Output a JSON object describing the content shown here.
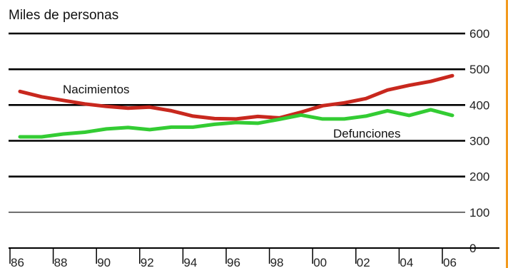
{
  "chart_data": {
    "type": "line",
    "title": "",
    "ylabel": "Miles de personas",
    "xlabel": "",
    "x": [
      1986,
      1987,
      1988,
      1989,
      1990,
      1991,
      1992,
      1993,
      1994,
      1995,
      1996,
      1997,
      1998,
      1999,
      2000,
      2001,
      2002,
      2003,
      2004,
      2005,
      2006
    ],
    "x_ticks": [
      1986,
      1988,
      1990,
      1992,
      1994,
      1996,
      1998,
      2000,
      2002,
      2004,
      2006
    ],
    "x_tick_labels": [
      "86",
      "88",
      "90",
      "92",
      "94",
      "96",
      "98",
      "00",
      "02",
      "04",
      "06"
    ],
    "ylim": [
      0,
      600
    ],
    "y_ticks": [
      0,
      100,
      200,
      300,
      400,
      500,
      600
    ],
    "y_tick_labels": [
      "0",
      "100",
      "200",
      "300",
      "400",
      "500",
      "600"
    ],
    "grid": true,
    "series": [
      {
        "name": "Nacimientos",
        "color": "#c8281e",
        "values": [
          438,
          423,
          413,
          403,
          396,
          391,
          394,
          384,
          369,
          362,
          361,
          368,
          364,
          380,
          398,
          406,
          418,
          442,
          455,
          466,
          482
        ]
      },
      {
        "name": "Defunciones",
        "color": "#33cc33",
        "values": [
          311,
          311,
          319,
          324,
          333,
          337,
          331,
          338,
          338,
          346,
          351,
          349,
          360,
          372,
          361,
          361,
          369,
          384,
          371,
          387,
          371
        ]
      }
    ]
  }
}
